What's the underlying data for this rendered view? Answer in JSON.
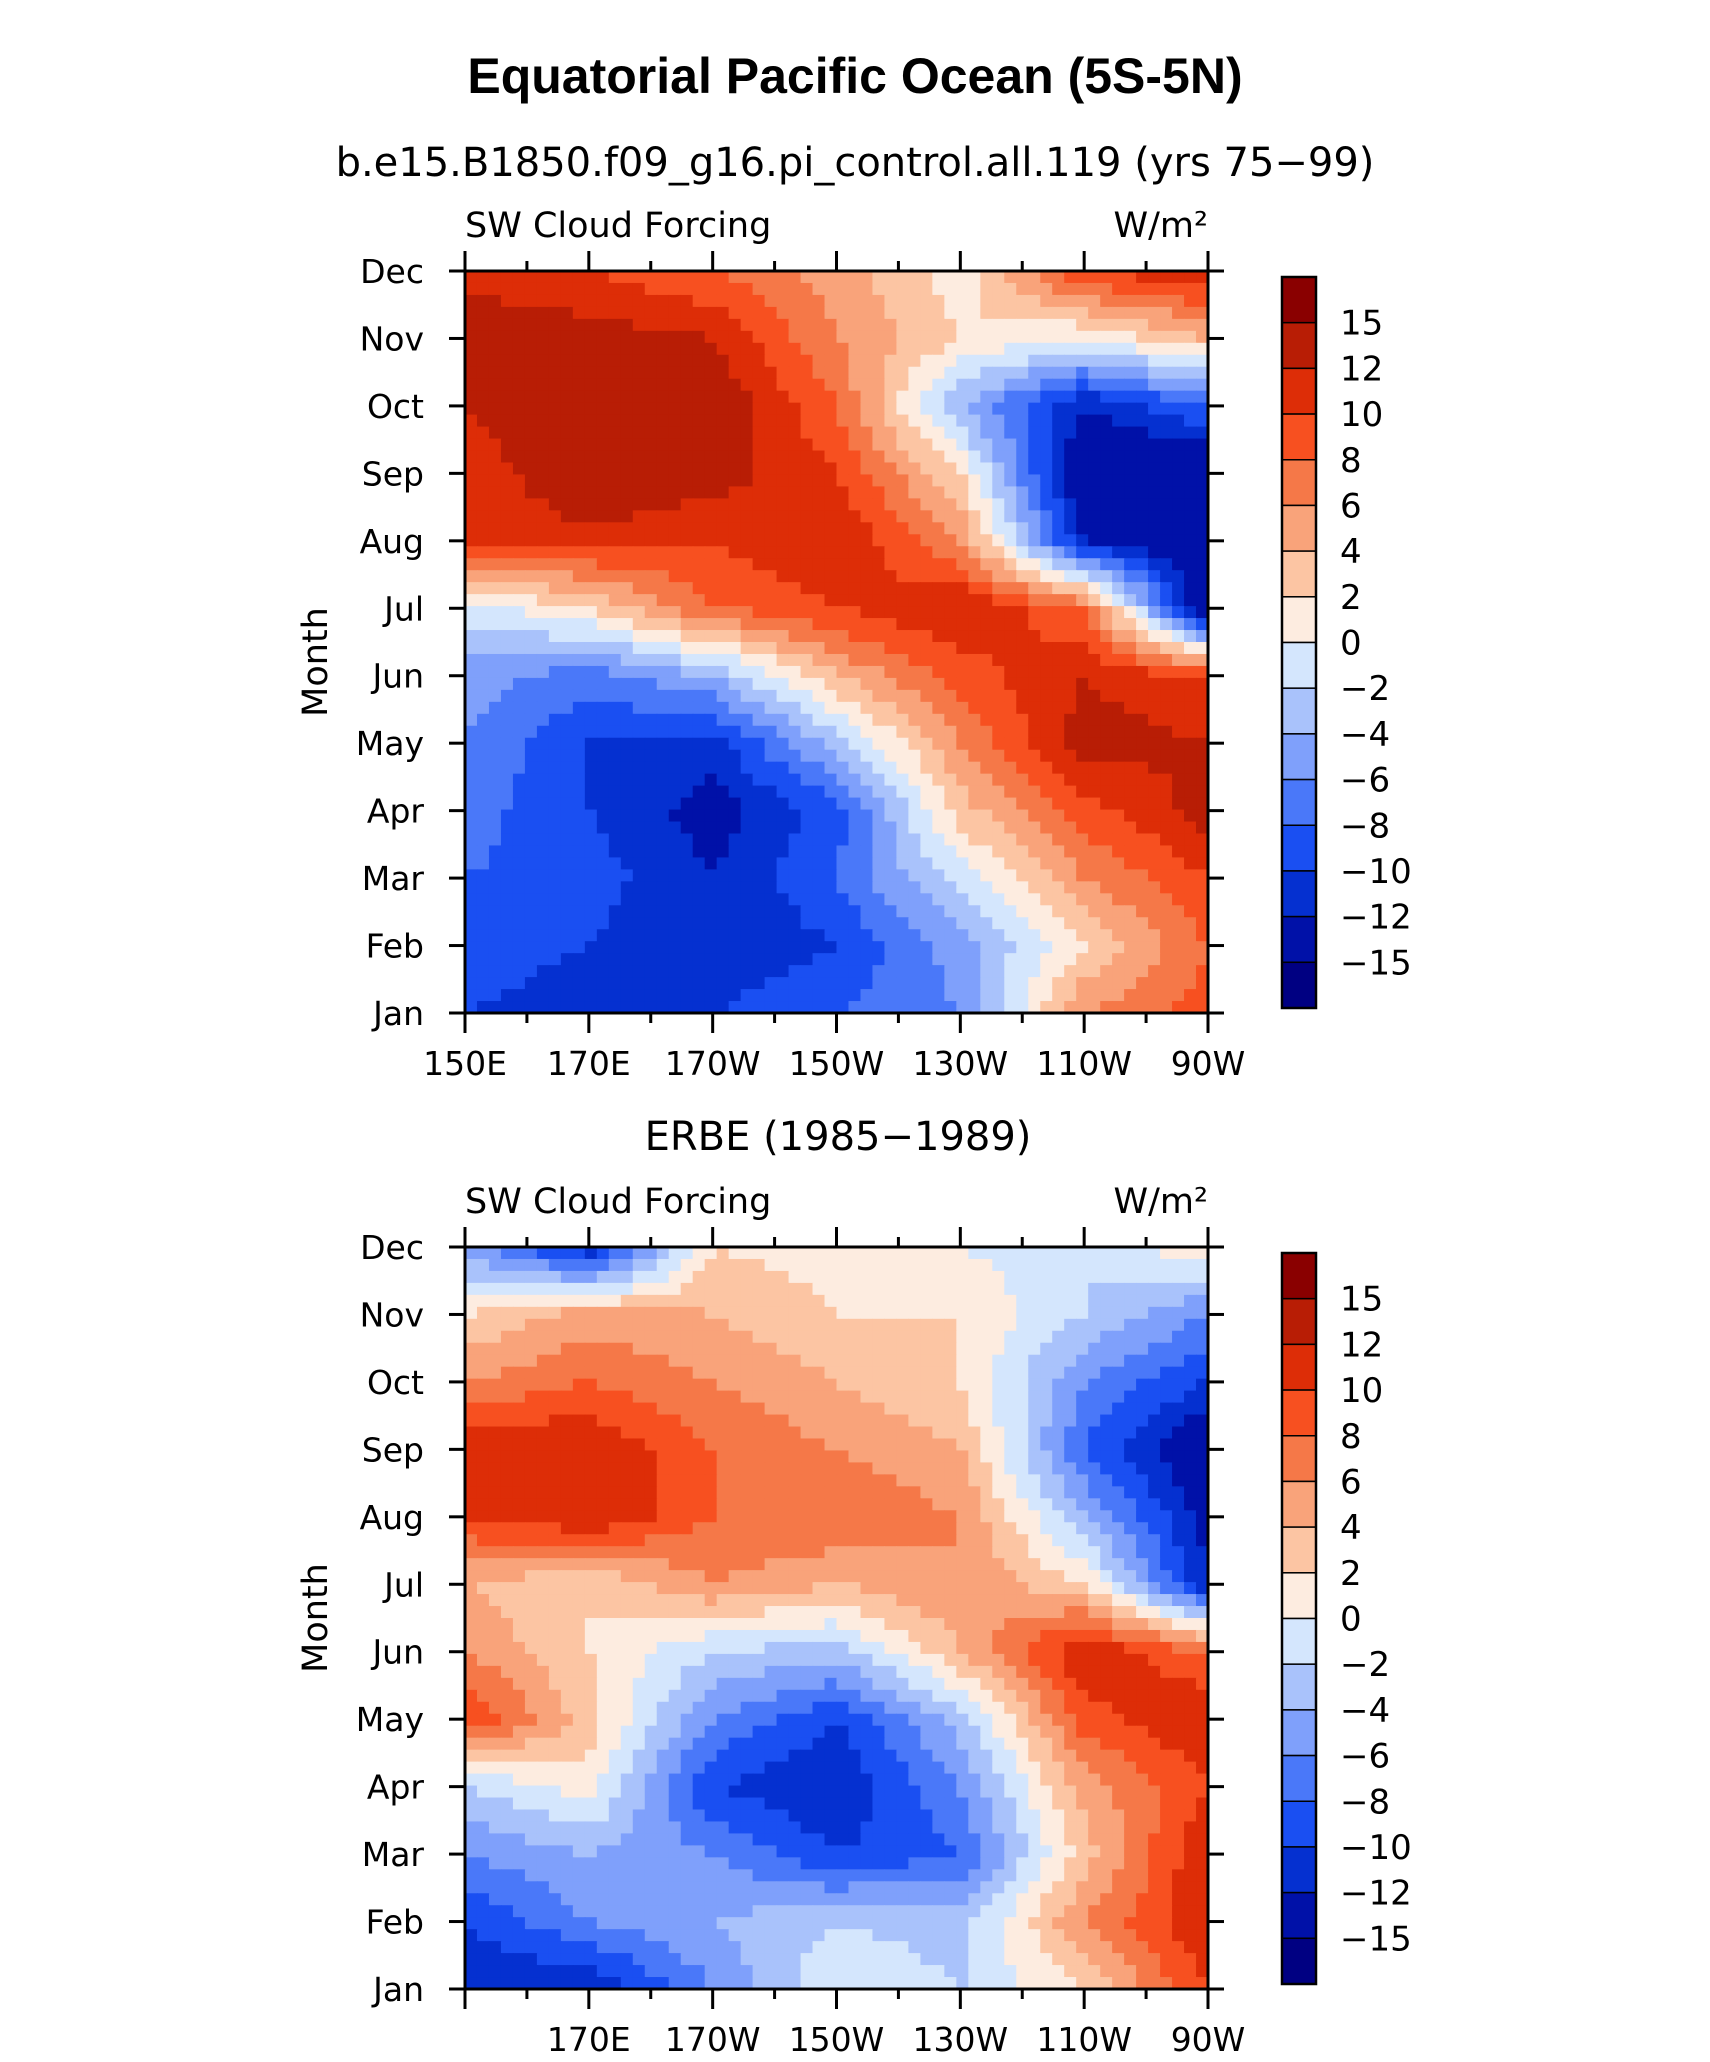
{
  "figure": {
    "title": "Equatorial Pacific Ocean (5S-5N)"
  },
  "colors": {
    "levels_low_to_high": [
      "#000082",
      "#0011a8",
      "#0530d0",
      "#1a4ff2",
      "#4a78f9",
      "#7fa0fb",
      "#a9c2fb",
      "#d4e6fd",
      "#fdece0",
      "#fcc5a3",
      "#f9a37a",
      "#f57848",
      "#f75020",
      "#dd2d07",
      "#b81d05",
      "#8a0000"
    ]
  },
  "colorbar": {
    "labels": [
      "15",
      "12",
      "10",
      "8",
      "6",
      "4",
      "2",
      "0",
      "−2",
      "−4",
      "−6",
      "−8",
      "−10",
      "−12",
      "−15"
    ]
  },
  "panels": [
    {
      "title": "b.e15.B1850.f09_g16.pi_control.all.119 (yrs 75−99)",
      "left_label": "SW Cloud Forcing",
      "right_label": "W/m²",
      "ylabel": "Month"
    },
    {
      "title": "ERBE (1985−1989)",
      "left_label": "SW Cloud Forcing",
      "right_label": "W/m²",
      "ylabel": "Month"
    }
  ],
  "chart_data": [
    {
      "type": "heatmap",
      "title": "b.e15.B1850.f09_g16.pi_control.all.119 (yrs 75−99)",
      "ylabel": "Month",
      "units": "W/m²",
      "x_ticklabels": [
        "150E",
        "170E",
        "170W",
        "150W",
        "130W",
        "110W",
        "90W"
      ],
      "x": [
        150,
        170,
        190,
        210,
        230,
        250,
        270
      ],
      "y_ticklabels": [
        "Jan",
        "Feb",
        "Mar",
        "Apr",
        "May",
        "Jun",
        "Jul",
        "Aug",
        "Sep",
        "Oct",
        "Nov",
        "Dec"
      ],
      "levels": [
        -15,
        -12,
        -10,
        -8,
        -6,
        -4,
        -2,
        0,
        2,
        4,
        6,
        8,
        10,
        12,
        15
      ],
      "values": [
        [
          -10,
          -11,
          -10,
          -8,
          -6,
          6,
          9
        ],
        [
          -9,
          -10,
          -12,
          -10,
          -5,
          2,
          8
        ],
        [
          -8,
          -9,
          -12,
          -8,
          -1,
          6,
          10
        ],
        [
          -7,
          -10,
          -13,
          -9,
          3,
          9,
          13
        ],
        [
          -6,
          -10,
          -11,
          -3,
          6,
          13,
          12
        ],
        [
          -5,
          -7,
          -4,
          4,
          9,
          12,
          10
        ],
        [
          -1,
          2,
          8,
          10,
          12,
          8,
          -15
        ],
        [
          10,
          11,
          10,
          12,
          6,
          -12,
          -15
        ],
        [
          10,
          15,
          13,
          10,
          2,
          -15,
          -15
        ],
        [
          12,
          15,
          14,
          8,
          -4,
          -12,
          -8
        ],
        [
          15,
          13,
          12,
          6,
          2,
          0,
          4
        ],
        [
          10,
          10,
          8,
          5,
          1,
          10,
          12
        ]
      ]
    },
    {
      "type": "heatmap",
      "title": "ERBE (1985−1989)",
      "ylabel": "Month",
      "units": "W/m²",
      "x_ticklabels": [
        "170E",
        "170W",
        "150W",
        "130W",
        "110W",
        "90W"
      ],
      "x": [
        150,
        170,
        190,
        210,
        230,
        250,
        270
      ],
      "y_ticklabels": [
        "Jan",
        "Feb",
        "Mar",
        "Apr",
        "May",
        "Jun",
        "Jul",
        "Aug",
        "Sep",
        "Oct",
        "Nov",
        "Dec"
      ],
      "levels": [
        -15,
        -12,
        -10,
        -8,
        -6,
        -4,
        -2,
        0,
        2,
        4,
        6,
        8,
        10,
        12,
        15
      ],
      "values": [
        [
          -12,
          -12,
          -6,
          0,
          -2,
          2,
          10
        ],
        [
          -10,
          -6,
          -4,
          -2,
          -3,
          6,
          12
        ],
        [
          -6,
          -4,
          -6,
          -10,
          -8,
          3,
          12
        ],
        [
          -2,
          1,
          -10,
          -12,
          -6,
          5,
          10
        ],
        [
          10,
          3,
          -6,
          -10,
          -3,
          9,
          12
        ],
        [
          6,
          2,
          -2,
          -3,
          4,
          12,
          8
        ],
        [
          4,
          2,
          6,
          4,
          6,
          2,
          -12
        ],
        [
          10,
          12,
          8,
          8,
          6,
          -4,
          -13
        ],
        [
          12,
          12,
          8,
          6,
          4,
          -8,
          -15
        ],
        [
          6,
          8,
          6,
          4,
          2,
          -6,
          -10
        ],
        [
          2,
          5,
          4,
          2,
          2,
          -2,
          -6
        ],
        [
          -5,
          -12,
          2,
          1,
          0,
          -2,
          2
        ]
      ]
    }
  ]
}
